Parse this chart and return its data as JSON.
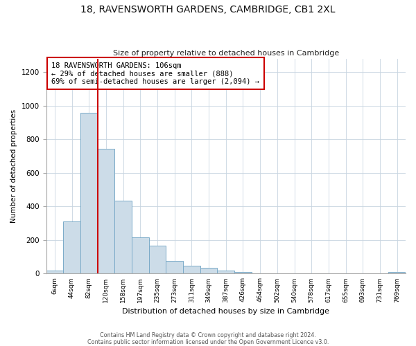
{
  "title": "18, RAVENSWORTH GARDENS, CAMBRIDGE, CB1 2XL",
  "subtitle": "Size of property relative to detached houses in Cambridge",
  "xlabel": "Distribution of detached houses by size in Cambridge",
  "ylabel": "Number of detached properties",
  "bar_labels": [
    "6sqm",
    "44sqm",
    "82sqm",
    "120sqm",
    "158sqm",
    "197sqm",
    "235sqm",
    "273sqm",
    "311sqm",
    "349sqm",
    "387sqm",
    "426sqm",
    "464sqm",
    "502sqm",
    "540sqm",
    "578sqm",
    "617sqm",
    "655sqm",
    "693sqm",
    "731sqm",
    "769sqm"
  ],
  "bar_heights": [
    20,
    310,
    960,
    745,
    435,
    215,
    165,
    75,
    47,
    33,
    18,
    8,
    0,
    0,
    0,
    0,
    0,
    0,
    0,
    0,
    8
  ],
  "bar_color": "#ccdce8",
  "bar_edge_color": "#7aaac8",
  "property_line_x": 2.5,
  "property_line_color": "#cc0000",
  "annotation_title": "18 RAVENSWORTH GARDENS: 106sqm",
  "annotation_line1": "← 29% of detached houses are smaller (888)",
  "annotation_line2": "69% of semi-detached houses are larger (2,094) →",
  "annotation_box_color": "#cc0000",
  "ylim": [
    0,
    1280
  ],
  "yticks": [
    0,
    200,
    400,
    600,
    800,
    1000,
    1200
  ],
  "footer_line1": "Contains HM Land Registry data © Crown copyright and database right 2024.",
  "footer_line2": "Contains public sector information licensed under the Open Government Licence v3.0.",
  "background_color": "#ffffff",
  "fig_width": 6.0,
  "fig_height": 5.0
}
